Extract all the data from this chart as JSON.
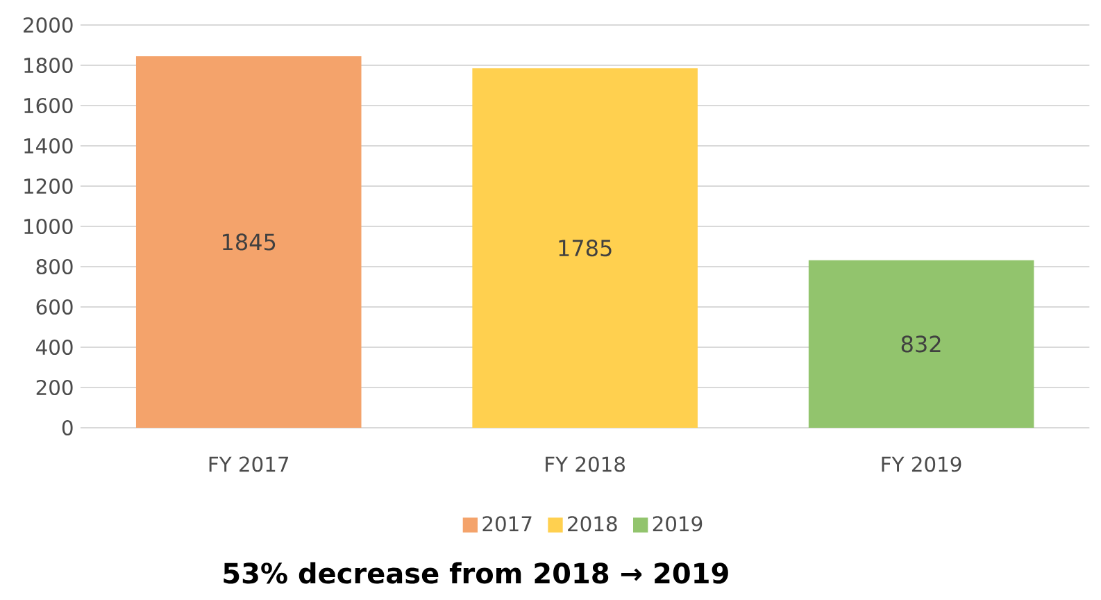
{
  "chart_data": {
    "type": "bar",
    "categories": [
      "FY 2017",
      "FY 2018",
      "FY 2019"
    ],
    "series": [
      {
        "name": "2017",
        "color": "#f4a36b",
        "values": [
          1845,
          null,
          null
        ]
      },
      {
        "name": "2018",
        "color": "#ffd04f",
        "values": [
          null,
          1785,
          null
        ]
      },
      {
        "name": "2019",
        "color": "#92c46d",
        "values": [
          null,
          null,
          832
        ]
      }
    ],
    "ylim": [
      0,
      2000
    ],
    "yticks": [
      0,
      200,
      400,
      600,
      800,
      1000,
      1200,
      1400,
      1600,
      1800,
      2000
    ],
    "grid": "y",
    "legend": "bottom",
    "data_labels": true,
    "annotations": [
      "53% decrease from 2018 → 2019"
    ]
  }
}
